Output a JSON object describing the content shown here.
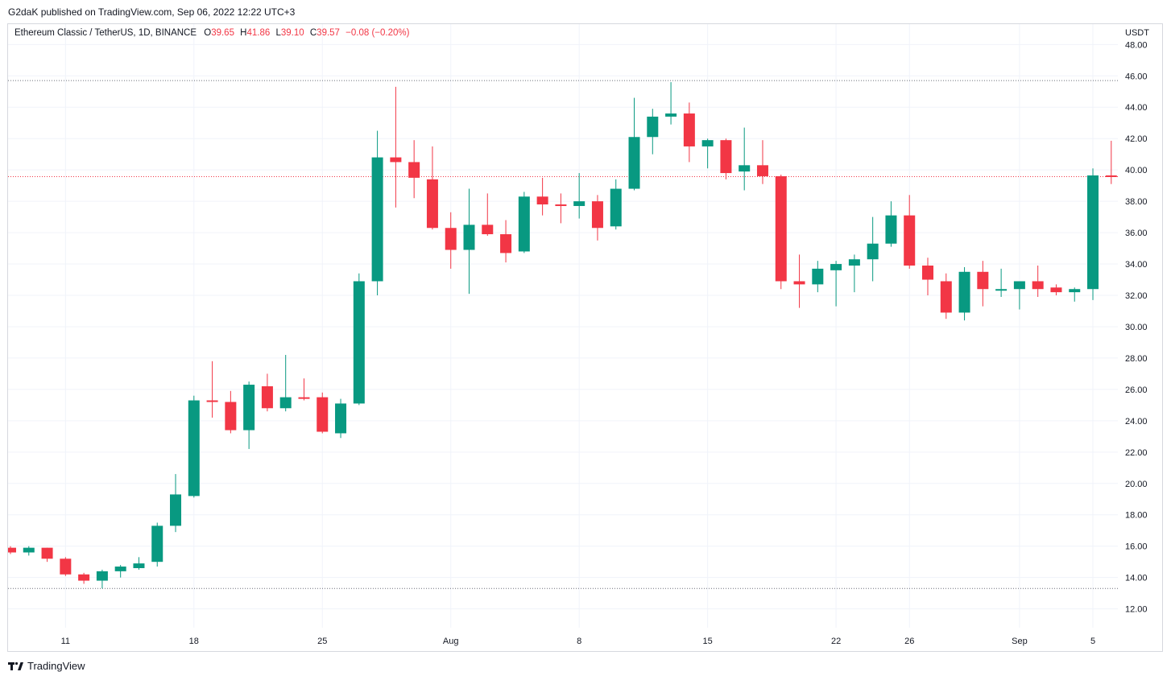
{
  "header": {
    "published": "G2daK published on TradingView.com, Sep 06, 2022 12:22 UTC+3"
  },
  "legend": {
    "symbol": "Ethereum Classic / TetherUS, 1D, BINANCE",
    "o_label": "O",
    "o_value": "39.65",
    "h_label": "H",
    "h_value": "41.86",
    "l_label": "L",
    "l_value": "39.10",
    "c_label": "C",
    "c_value": "39.57",
    "change": "−0.08 (−0.20%)"
  },
  "footer": {
    "brand": "TradingView"
  },
  "colors": {
    "up": "#089981",
    "down": "#f23645",
    "grid": "#f0f3fa",
    "axis_text": "#131722"
  },
  "chart_data": {
    "type": "candlestick",
    "y_unit_label": "USDT",
    "ylim": [
      10.8,
      49.3
    ],
    "y_ticks": [
      12,
      14,
      16,
      18,
      20,
      22,
      24,
      26,
      28,
      30,
      32,
      34,
      36,
      38,
      40,
      42,
      44,
      46,
      48
    ],
    "x_ticks": [
      {
        "label": "11",
        "index": 3
      },
      {
        "label": "18",
        "index": 10
      },
      {
        "label": "25",
        "index": 17
      },
      {
        "label": "Aug",
        "index": 24
      },
      {
        "label": "8",
        "index": 31
      },
      {
        "label": "15",
        "index": 38
      },
      {
        "label": "22",
        "index": 45
      },
      {
        "label": "26",
        "index": 49
      },
      {
        "label": "Sep",
        "index": 55
      },
      {
        "label": "5",
        "index": 59
      }
    ],
    "reference_lines": [
      45.7,
      13.3
    ],
    "last_price": 39.57,
    "grid": true,
    "candles": [
      {
        "o": 15.9,
        "h": 16.0,
        "l": 15.5,
        "c": 15.6
      },
      {
        "o": 15.6,
        "h": 16.0,
        "l": 15.4,
        "c": 15.9
      },
      {
        "o": 15.9,
        "h": 15.9,
        "l": 15.0,
        "c": 15.2
      },
      {
        "o": 15.2,
        "h": 15.3,
        "l": 14.1,
        "c": 14.2
      },
      {
        "o": 14.2,
        "h": 14.3,
        "l": 13.6,
        "c": 13.8
      },
      {
        "o": 13.8,
        "h": 14.5,
        "l": 13.3,
        "c": 14.4
      },
      {
        "o": 14.4,
        "h": 14.8,
        "l": 14.0,
        "c": 14.7
      },
      {
        "o": 14.6,
        "h": 15.3,
        "l": 14.5,
        "c": 14.9
      },
      {
        "o": 15.0,
        "h": 17.5,
        "l": 14.7,
        "c": 17.3
      },
      {
        "o": 17.3,
        "h": 20.6,
        "l": 16.9,
        "c": 19.3
      },
      {
        "o": 19.2,
        "h": 25.6,
        "l": 19.1,
        "c": 25.3
      },
      {
        "o": 25.3,
        "h": 27.8,
        "l": 24.2,
        "c": 25.2
      },
      {
        "o": 25.2,
        "h": 25.9,
        "l": 23.2,
        "c": 23.4
      },
      {
        "o": 23.4,
        "h": 26.5,
        "l": 22.2,
        "c": 26.3
      },
      {
        "o": 26.2,
        "h": 27.0,
        "l": 24.6,
        "c": 24.8
      },
      {
        "o": 24.8,
        "h": 28.2,
        "l": 24.6,
        "c": 25.5
      },
      {
        "o": 25.5,
        "h": 26.7,
        "l": 25.3,
        "c": 25.4
      },
      {
        "o": 25.5,
        "h": 25.8,
        "l": 23.2,
        "c": 23.3
      },
      {
        "o": 23.2,
        "h": 25.4,
        "l": 22.9,
        "c": 25.1
      },
      {
        "o": 25.1,
        "h": 33.4,
        "l": 25.0,
        "c": 32.9
      },
      {
        "o": 32.9,
        "h": 42.5,
        "l": 32.0,
        "c": 40.8
      },
      {
        "o": 40.8,
        "h": 45.3,
        "l": 37.6,
        "c": 40.5
      },
      {
        "o": 40.5,
        "h": 41.9,
        "l": 38.2,
        "c": 39.5
      },
      {
        "o": 39.4,
        "h": 41.5,
        "l": 36.2,
        "c": 36.3
      },
      {
        "o": 36.3,
        "h": 37.3,
        "l": 33.7,
        "c": 34.9
      },
      {
        "o": 34.9,
        "h": 38.8,
        "l": 32.1,
        "c": 36.5
      },
      {
        "o": 36.5,
        "h": 38.5,
        "l": 35.8,
        "c": 35.9
      },
      {
        "o": 35.9,
        "h": 36.8,
        "l": 34.1,
        "c": 34.7
      },
      {
        "o": 34.8,
        "h": 38.6,
        "l": 34.7,
        "c": 38.3
      },
      {
        "o": 38.3,
        "h": 39.5,
        "l": 37.1,
        "c": 37.8
      },
      {
        "o": 37.8,
        "h": 38.5,
        "l": 36.6,
        "c": 37.7
      },
      {
        "o": 37.7,
        "h": 39.8,
        "l": 36.9,
        "c": 38.0
      },
      {
        "o": 38.0,
        "h": 38.4,
        "l": 35.5,
        "c": 36.3
      },
      {
        "o": 36.4,
        "h": 39.4,
        "l": 36.2,
        "c": 38.8
      },
      {
        "o": 38.8,
        "h": 44.6,
        "l": 38.7,
        "c": 42.1
      },
      {
        "o": 42.1,
        "h": 43.9,
        "l": 41.0,
        "c": 43.4
      },
      {
        "o": 43.4,
        "h": 45.6,
        "l": 42.9,
        "c": 43.6
      },
      {
        "o": 43.6,
        "h": 44.3,
        "l": 40.5,
        "c": 41.5
      },
      {
        "o": 41.5,
        "h": 42.0,
        "l": 40.1,
        "c": 41.9
      },
      {
        "o": 41.9,
        "h": 42.0,
        "l": 39.4,
        "c": 39.8
      },
      {
        "o": 39.9,
        "h": 42.7,
        "l": 38.7,
        "c": 40.3
      },
      {
        "o": 40.3,
        "h": 41.9,
        "l": 39.1,
        "c": 39.6
      },
      {
        "o": 39.6,
        "h": 39.7,
        "l": 32.4,
        "c": 32.9
      },
      {
        "o": 32.9,
        "h": 34.6,
        "l": 31.2,
        "c": 32.7
      },
      {
        "o": 32.7,
        "h": 34.2,
        "l": 32.2,
        "c": 33.7
      },
      {
        "o": 33.6,
        "h": 34.2,
        "l": 31.3,
        "c": 34.0
      },
      {
        "o": 33.9,
        "h": 34.6,
        "l": 32.2,
        "c": 34.3
      },
      {
        "o": 34.3,
        "h": 37.0,
        "l": 32.9,
        "c": 35.3
      },
      {
        "o": 35.3,
        "h": 38.0,
        "l": 35.1,
        "c": 37.1
      },
      {
        "o": 37.1,
        "h": 38.4,
        "l": 33.7,
        "c": 33.9
      },
      {
        "o": 33.9,
        "h": 34.4,
        "l": 32.0,
        "c": 33.0
      },
      {
        "o": 32.9,
        "h": 33.4,
        "l": 30.5,
        "c": 30.9
      },
      {
        "o": 30.9,
        "h": 33.8,
        "l": 30.4,
        "c": 33.5
      },
      {
        "o": 33.5,
        "h": 34.2,
        "l": 31.3,
        "c": 32.4
      },
      {
        "o": 32.3,
        "h": 33.7,
        "l": 31.9,
        "c": 32.4
      },
      {
        "o": 32.4,
        "h": 32.9,
        "l": 31.1,
        "c": 32.9
      },
      {
        "o": 32.9,
        "h": 33.9,
        "l": 31.9,
        "c": 32.4
      },
      {
        "o": 32.5,
        "h": 32.7,
        "l": 32.0,
        "c": 32.2
      },
      {
        "o": 32.2,
        "h": 32.5,
        "l": 31.6,
        "c": 32.4
      },
      {
        "o": 32.4,
        "h": 40.1,
        "l": 31.7,
        "c": 39.65
      },
      {
        "o": 39.65,
        "h": 41.86,
        "l": 39.1,
        "c": 39.57
      }
    ]
  }
}
